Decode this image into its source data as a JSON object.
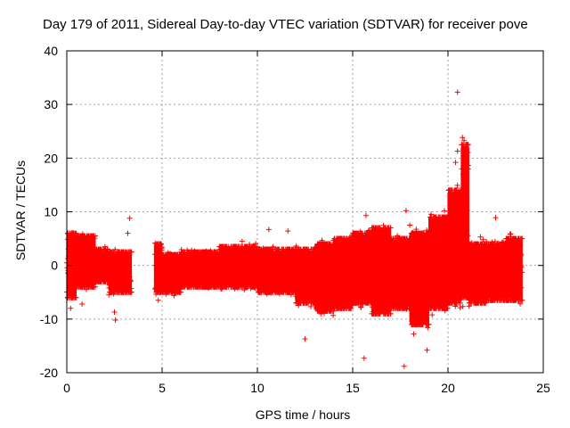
{
  "chart_data": {
    "type": "scatter",
    "title": "Day 179 of 2011, Sidereal Day-to-day VTEC variation (SDTVAR) for receiver pove",
    "xlabel": "GPS time / hours",
    "ylabel": "SDTVAR / TECUs",
    "xlim": [
      0,
      25
    ],
    "ylim": [
      -20,
      40
    ],
    "xticks": [
      0,
      5,
      10,
      15,
      20,
      25
    ],
    "yticks": [
      -20,
      -10,
      0,
      10,
      20,
      30,
      40
    ],
    "grid": true,
    "marker": "+",
    "color": "#ff0000",
    "bands": [
      {
        "x0": 0.0,
        "x1": 0.5,
        "lo": -6,
        "hi": 6
      },
      {
        "x0": 0.5,
        "x1": 1.5,
        "lo": -4,
        "hi": 5.5
      },
      {
        "x0": 1.5,
        "x1": 2.2,
        "lo": -3,
        "hi": 3
      },
      {
        "x0": 2.2,
        "x1": 3.4,
        "lo": -5,
        "hi": 2.5
      },
      {
        "x0": 4.6,
        "x1": 5.0,
        "lo": -5,
        "hi": 4
      },
      {
        "x0": 5.0,
        "x1": 6.0,
        "lo": -5,
        "hi": 2
      },
      {
        "x0": 6.0,
        "x1": 8.0,
        "lo": -4,
        "hi": 2.5
      },
      {
        "x0": 8.0,
        "x1": 10.0,
        "lo": -4,
        "hi": 3.5
      },
      {
        "x0": 10.0,
        "x1": 12.0,
        "lo": -5,
        "hi": 3
      },
      {
        "x0": 12.0,
        "x1": 13.0,
        "lo": -7,
        "hi": 3
      },
      {
        "x0": 13.0,
        "x1": 14.0,
        "lo": -8.5,
        "hi": 4
      },
      {
        "x0": 14.0,
        "x1": 15.0,
        "lo": -8,
        "hi": 5
      },
      {
        "x0": 15.0,
        "x1": 16.0,
        "lo": -7,
        "hi": 6
      },
      {
        "x0": 16.0,
        "x1": 17.0,
        "lo": -9,
        "hi": 7
      },
      {
        "x0": 17.0,
        "x1": 18.0,
        "lo": -8,
        "hi": 5
      },
      {
        "x0": 18.0,
        "x1": 19.0,
        "lo": -11,
        "hi": 6
      },
      {
        "x0": 19.0,
        "x1": 20.0,
        "lo": -8,
        "hi": 9
      },
      {
        "x0": 20.0,
        "x1": 20.7,
        "lo": -7,
        "hi": 14
      },
      {
        "x0": 20.7,
        "x1": 21.1,
        "lo": -6,
        "hi": 22.5
      },
      {
        "x0": 21.1,
        "x1": 22.0,
        "lo": -7,
        "hi": 4
      },
      {
        "x0": 22.0,
        "x1": 23.0,
        "lo": -6.5,
        "hi": 4
      },
      {
        "x0": 23.0,
        "x1": 23.9,
        "lo": -6.5,
        "hi": 5
      }
    ],
    "outliers": [
      [
        0.2,
        -8.0
      ],
      [
        0.8,
        -7.2
      ],
      [
        2.5,
        -8.7
      ],
      [
        2.55,
        -10.2
      ],
      [
        3.2,
        6.0
      ],
      [
        3.3,
        8.8
      ],
      [
        4.8,
        -6.5
      ],
      [
        9.2,
        4.5
      ],
      [
        10.6,
        6.7
      ],
      [
        10.5,
        -5.3
      ],
      [
        11.6,
        6.4
      ],
      [
        12.5,
        -13.7
      ],
      [
        13.4,
        3.3
      ],
      [
        15.7,
        9.3
      ],
      [
        15.6,
        -17.3
      ],
      [
        17.7,
        -18.8
      ],
      [
        17.8,
        10.2
      ],
      [
        18.0,
        7.5
      ],
      [
        18.2,
        -12.8
      ],
      [
        18.9,
        -15.8
      ],
      [
        19.0,
        -8.3
      ],
      [
        20.5,
        32.3
      ],
      [
        20.5,
        21.3
      ],
      [
        20.4,
        19.2
      ],
      [
        21.7,
        5.3
      ],
      [
        22.5,
        8.9
      ]
    ]
  }
}
